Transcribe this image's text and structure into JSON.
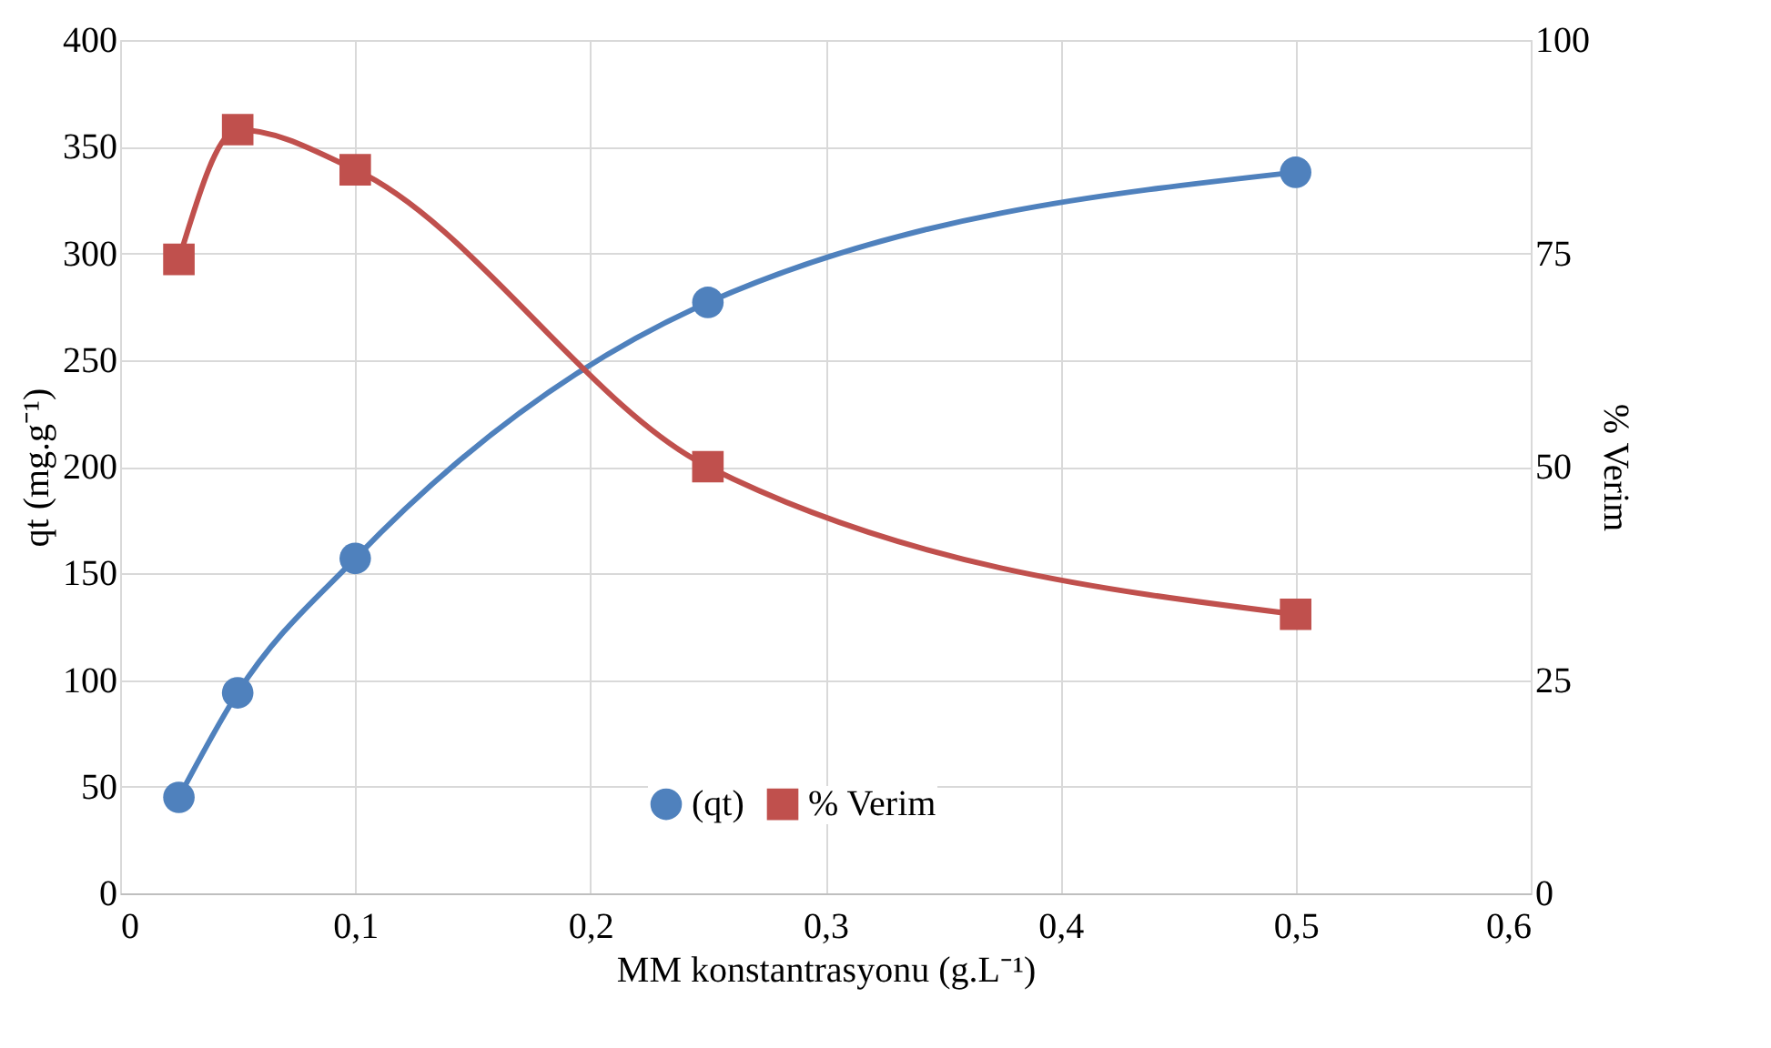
{
  "chart_data": {
    "type": "line",
    "xlabel": "MM konstantrasyonu (g.L⁻¹)",
    "ylabel": "qt (mg.g⁻¹)",
    "y2label": "% Verim",
    "xlim": [
      0,
      0.6
    ],
    "xticks": [
      0,
      {
        "value": 0.1,
        "label": "0,1"
      },
      {
        "value": 0.2,
        "label": "0,2"
      },
      {
        "value": 0.3,
        "label": "0,3"
      },
      {
        "value": 0.4,
        "label": "0,4"
      },
      {
        "value": 0.5,
        "label": "0,5"
      },
      {
        "value": 0.6,
        "label": "0,6"
      }
    ],
    "ylim": [
      0,
      400
    ],
    "yticks": [
      0,
      50,
      100,
      150,
      200,
      250,
      300,
      350,
      400
    ],
    "y2lim": [
      0,
      100
    ],
    "y2ticks": [
      0,
      25,
      50,
      75,
      100
    ],
    "grid": true,
    "legend": "bottom",
    "x": [
      0.025,
      0.05,
      0.1,
      0.25,
      0.5
    ],
    "series": [
      {
        "name": "(qt)",
        "color": "#4f81bd",
        "marker": "circle",
        "values": [
          45,
          94,
          157,
          277,
          338
        ]
      },
      {
        "name": "% Verim",
        "color": "#c0504d",
        "marker": "square",
        "axis": "y2",
        "values": [
          74.3,
          89.5,
          84.8,
          50,
          32.7
        ]
      }
    ]
  }
}
